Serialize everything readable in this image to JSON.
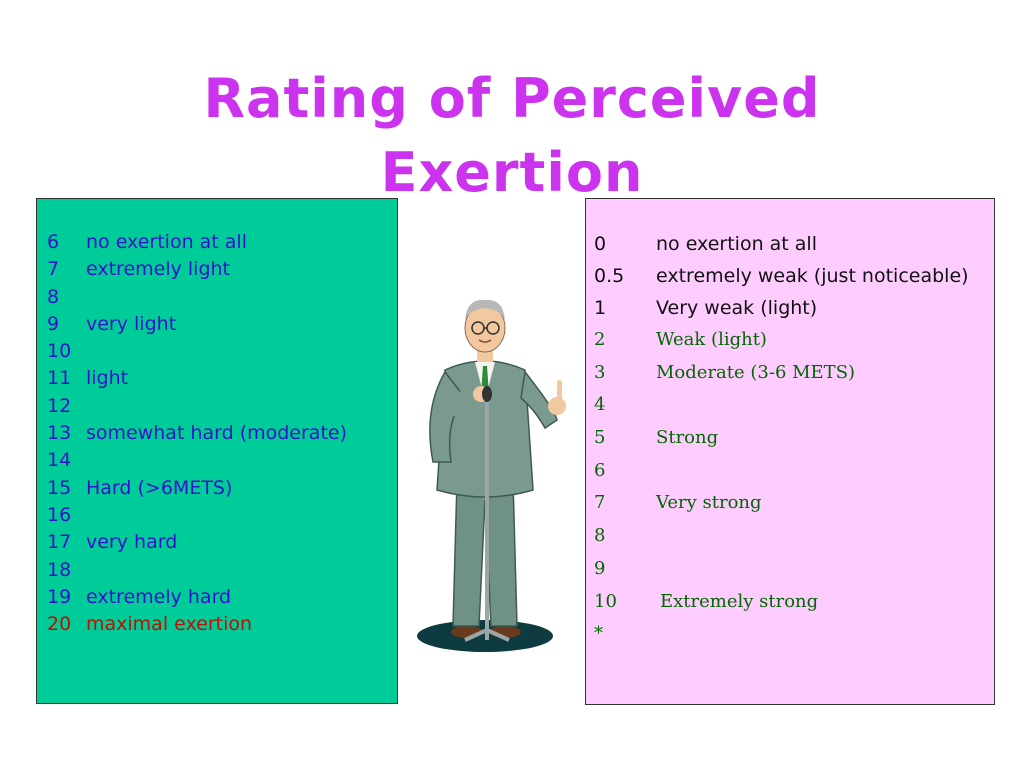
{
  "title": {
    "line1": "Rating of Perceived",
    "line2": "Exertion"
  },
  "borg_scale": [
    {
      "num": "6",
      "label": "no exertion at all"
    },
    {
      "num": "7",
      "label": "extremely light"
    },
    {
      "num": "8",
      "label": ""
    },
    {
      "num": "9",
      "label": "very light"
    },
    {
      "num": "10",
      "label": ""
    },
    {
      "num": "11",
      "label": "light"
    },
    {
      "num": "12",
      "label": ""
    },
    {
      "num": "13",
      "label": "somewhat hard (moderate)"
    },
    {
      "num": "14",
      "label": ""
    },
    {
      "num": "15",
      "label": "Hard (>6METS)"
    },
    {
      "num": "16",
      "label": ""
    },
    {
      "num": "17",
      "label": "very hard"
    },
    {
      "num": "18",
      "label": ""
    },
    {
      "num": "19",
      "label": "extremely hard"
    },
    {
      "num": "20",
      "label": "maximal exertion"
    }
  ],
  "cr10_scale": [
    {
      "num": "0",
      "label": "no exertion at all"
    },
    {
      "num": "0.5",
      "label": "extremely weak (just noticeable)"
    },
    {
      "num": "1",
      "label": "Very weak (light)"
    },
    {
      "num": "2",
      "label": "Weak (light)"
    },
    {
      "num": "3",
      "label": "Moderate (3-6 METS)"
    },
    {
      "num": "4",
      "label": ""
    },
    {
      "num": "5",
      "label": "Strong"
    },
    {
      "num": "6",
      "label": ""
    },
    {
      "num": "7",
      "label": "Very strong"
    },
    {
      "num": "8",
      "label": ""
    },
    {
      "num": "9",
      "label": ""
    },
    {
      "num": "10",
      "label": "Extremely strong"
    },
    {
      "num": "*",
      "label": ""
    }
  ],
  "colors": {
    "title": "#cc33ee",
    "left_panel": "#00cc99",
    "right_panel": "#ffccff",
    "left_text": "#3311cc",
    "max_text": "#bb1100",
    "right_serif_text": "#006600"
  },
  "illustration": {
    "icon": "speaker-with-microphone-icon"
  }
}
